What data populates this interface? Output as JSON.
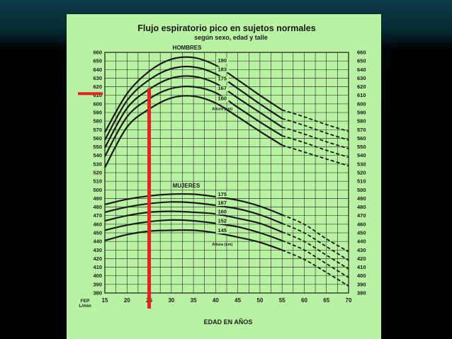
{
  "chart_data": {
    "type": "line",
    "title": "Flujo espiratorio pico en sujetos normales",
    "subtitle": "según sexo, edad y talle",
    "xlabel": "EDAD EN AÑOS",
    "ylabel": "FEP\nL/min",
    "ylim": [
      380,
      660
    ],
    "xlim": [
      15,
      70
    ],
    "x_ticks": [
      "15",
      "20",
      "25",
      "30",
      "35",
      "40",
      "45",
      "50",
      "55",
      "60",
      "65",
      "70"
    ],
    "y_ticks": [
      "380",
      "390",
      "400",
      "410",
      "420",
      "430",
      "440",
      "450",
      "460",
      "470",
      "480",
      "490",
      "500",
      "510",
      "520",
      "530",
      "540",
      "550",
      "560",
      "570",
      "580",
      "590",
      "600",
      "610",
      "620",
      "630",
      "640",
      "650",
      "660"
    ],
    "grid": true,
    "panels": [
      {
        "name": "HOMBRES",
        "series_label": "Altura (cm)",
        "series": [
          {
            "name": "190",
            "x": [
              15,
              20,
              25,
              30,
              35,
              40,
              45,
              50,
              55,
              60,
              65,
              70
            ],
            "values": [
              567,
              612,
              638,
              652,
              654,
              645,
              628,
              610,
              593,
              585,
              576,
              568
            ]
          },
          {
            "name": "183",
            "x": [
              15,
              20,
              25,
              30,
              35,
              40,
              45,
              50,
              55,
              60,
              65,
              70
            ],
            "values": [
              558,
              604,
              628,
              641,
              643,
              635,
              618,
              600,
              583,
              575,
              566,
              558
            ]
          },
          {
            "name": "175",
            "x": [
              15,
              20,
              25,
              30,
              35,
              40,
              45,
              50,
              55,
              60,
              65,
              70
            ],
            "values": [
              549,
              595,
              617,
              630,
              632,
              624,
              607,
              590,
              573,
              565,
              556,
              548
            ]
          },
          {
            "name": "167",
            "x": [
              15,
              20,
              25,
              30,
              35,
              40,
              45,
              50,
              55,
              60,
              65,
              70
            ],
            "values": [
              539,
              585,
              606,
              618,
              620,
              613,
              596,
              579,
              563,
              555,
              546,
              538
            ]
          },
          {
            "name": "160",
            "x": [
              15,
              20,
              25,
              30,
              35,
              40,
              45,
              50,
              55,
              60,
              65,
              70
            ],
            "values": [
              526,
              573,
              594,
              607,
              609,
              601,
              585,
              568,
              552,
              544,
              536,
              528
            ]
          }
        ]
      },
      {
        "name": "MUJERES",
        "series_label": "Altura (cm)",
        "series": [
          {
            "name": "175",
            "x": [
              15,
              20,
              25,
              30,
              35,
              40,
              45,
              50,
              55,
              60,
              65,
              70
            ],
            "values": [
              483,
              489,
              493,
              495,
              495,
              492,
              488,
              481,
              471,
              460,
              443,
              428
            ]
          },
          {
            "name": "167",
            "x": [
              15,
              20,
              25,
              30,
              35,
              40,
              45,
              50,
              55,
              60,
              65,
              70
            ],
            "values": [
              474,
              480,
              484,
              486,
              485,
              482,
              478,
              471,
              461,
              450,
              434,
              418
            ]
          },
          {
            "name": "160",
            "x": [
              15,
              20,
              25,
              30,
              35,
              40,
              45,
              50,
              55,
              60,
              65,
              70
            ],
            "values": [
              464,
              470,
              474,
              475,
              474,
              472,
              467,
              461,
              451,
              440,
              424,
              408
            ]
          },
          {
            "name": "152",
            "x": [
              15,
              20,
              25,
              30,
              35,
              40,
              45,
              50,
              55,
              60,
              65,
              70
            ],
            "values": [
              453,
              459,
              463,
              465,
              464,
              461,
              457,
              450,
              441,
              430,
              414,
              398
            ]
          },
          {
            "name": "145",
            "x": [
              15,
              20,
              25,
              30,
              35,
              40,
              45,
              50,
              55,
              60,
              65,
              70
            ],
            "values": [
              441,
              448,
              452,
              453,
              453,
              450,
              445,
              439,
              430,
              419,
              404,
              388
            ]
          }
        ]
      }
    ],
    "annotations": [
      {
        "type": "vertical-marker",
        "x": 25,
        "from_y": 380,
        "to_y": 618,
        "color": "#e8201e"
      },
      {
        "type": "horizontal-marker",
        "y": 612,
        "color": "#e8201e"
      }
    ]
  }
}
